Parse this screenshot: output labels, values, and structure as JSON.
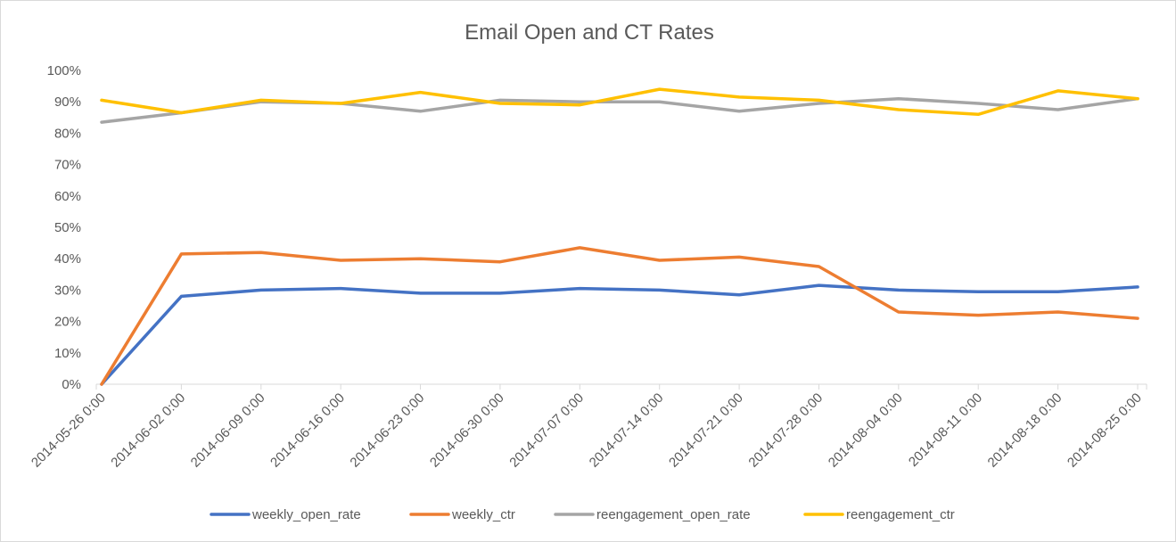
{
  "chart_data": {
    "type": "line",
    "title": "Email Open and CT Rates",
    "xlabel": "",
    "ylabel": "",
    "ylim": [
      0,
      1
    ],
    "y_tick_values": [
      0,
      0.1,
      0.2,
      0.3,
      0.4,
      0.5,
      0.6,
      0.7,
      0.8,
      0.9,
      1.0
    ],
    "y_tick_labels": [
      "0%",
      "10%",
      "20%",
      "30%",
      "40%",
      "50%",
      "60%",
      "70%",
      "80%",
      "90%",
      "100%"
    ],
    "grid": false,
    "legend_position": "bottom",
    "categories": [
      "2014-05-26 0:00",
      "2014-06-02 0:00",
      "2014-06-09 0:00",
      "2014-06-16 0:00",
      "2014-06-23 0:00",
      "2014-06-30 0:00",
      "2014-07-07 0:00",
      "2014-07-14 0:00",
      "2014-07-21 0:00",
      "2014-07-28 0:00",
      "2014-08-04 0:00",
      "2014-08-11 0:00",
      "2014-08-18 0:00",
      "2014-08-25 0:00"
    ],
    "series": [
      {
        "name": "weekly_open_rate",
        "color": "#4472C4",
        "values": [
          0.0,
          0.28,
          0.3,
          0.305,
          0.29,
          0.29,
          0.305,
          0.3,
          0.285,
          0.315,
          0.3,
          0.295,
          0.295,
          0.31
        ]
      },
      {
        "name": "weekly_ctr",
        "color": "#ED7D31",
        "values": [
          0.0,
          0.415,
          0.42,
          0.395,
          0.4,
          0.39,
          0.435,
          0.395,
          0.405,
          0.375,
          0.23,
          0.22,
          0.23,
          0.21
        ]
      },
      {
        "name": "reengagement_open_rate",
        "color": "#A5A5A5",
        "values": [
          0.835,
          0.865,
          0.9,
          0.895,
          0.87,
          0.905,
          0.9,
          0.9,
          0.87,
          0.895,
          0.91,
          0.895,
          0.875,
          0.91
        ]
      },
      {
        "name": "reengagement_ctr",
        "color": "#FFC000",
        "values": [
          0.905,
          0.865,
          0.905,
          0.895,
          0.93,
          0.895,
          0.89,
          0.94,
          0.915,
          0.905,
          0.875,
          0.86,
          0.935,
          0.91
        ]
      }
    ]
  }
}
